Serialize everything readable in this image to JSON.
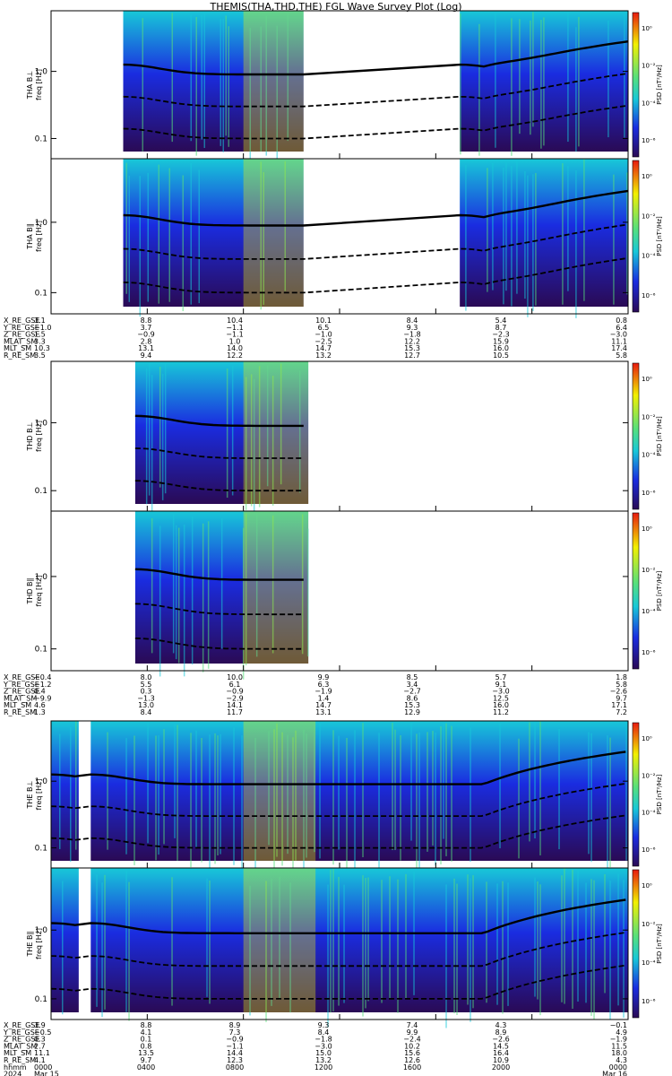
{
  "title": "THEMIS(THA,THD,THE) FGL Wave Survey Plot (Log)",
  "freq_ticks": [
    "0.1",
    "1.0"
  ],
  "cb_ticks": [
    "10⁰",
    "10⁻²",
    "10⁻⁴",
    "10⁻⁶"
  ],
  "cb_label": "PSD [nT²/Hz]",
  "colors": {
    "low": "#2a0a55",
    "blue": "#1a2ce0",
    "cyan": "#18c8d8",
    "green": "#56e07c",
    "yellow": "#f2f000",
    "red": "#e81a10"
  },
  "panels": [
    {
      "name": "tha-bl",
      "label1": "THA B⊥",
      "label2": "freq [Hz]"
    },
    {
      "name": "tha-bpar",
      "label1": "THA B∥",
      "label2": "freq [Hz]"
    },
    {
      "name": "thd-bl",
      "label1": "THD B⊥",
      "label2": "freq [Hz]"
    },
    {
      "name": "thd-bpar",
      "label1": "THD B∥",
      "label2": "freq [Hz]"
    },
    {
      "name": "the-bl",
      "label1": "THE B⊥",
      "label2": "freq [Hz]"
    },
    {
      "name": "the-bpar",
      "label1": "THE B∥",
      "label2": "freq [Hz]"
    }
  ],
  "eph_blocks": [
    {
      "rows": [
        {
          "label": "X_RE_GSE",
          "vals": [
            "3.1",
            "8.8",
            "10.4",
            "10.1",
            "8.4",
            "5.4",
            "0.8"
          ]
        },
        {
          "label": "Y_RE_GSE",
          "vals": [
            "−1.0",
            "3.7",
            "−1.1",
            "6.5",
            "9.3",
            "8.7",
            "6.4"
          ]
        },
        {
          "label": "Z_RE_GSE",
          "vals": [
            "1.5",
            "−0.9",
            "−1.1",
            "−1.0",
            "−1.8",
            "−2.3",
            "−3.0"
          ]
        },
        {
          "label": "MLAT_SM",
          "vals": [
            "3.3",
            "2.8",
            "1.0",
            "−2.5",
            "12.2",
            "15.9",
            "11.1"
          ]
        },
        {
          "label": "MLT_SM",
          "vals": [
            "10.3",
            "13.1",
            "14.0",
            "14.7",
            "15.3",
            "16.0",
            "17.4"
          ]
        },
        {
          "label": "R_RE_SM",
          "vals": [
            "3.5",
            "9.4",
            "12.2",
            "13.2",
            "12.7",
            "10.5",
            "5.8"
          ]
        }
      ]
    },
    {
      "rows": [
        {
          "label": "X_RE_GSE",
          "vals": [
            "−0.4",
            "8.0",
            "10.0",
            "9.9",
            "8.5",
            "5.7",
            "1.8"
          ]
        },
        {
          "label": "Y_RE_GSE",
          "vals": [
            "−1.2",
            "5.5",
            "6.1",
            "6.3",
            "3.4",
            "9.1",
            "5.8"
          ]
        },
        {
          "label": "Z_RE_GSE",
          "vals": [
            "0.4",
            "0.3",
            "−0.9",
            "−1.9",
            "−2.7",
            "−3.0",
            "−2.6"
          ]
        },
        {
          "label": "MLAT_SM",
          "vals": [
            "−9.9",
            "−1.3",
            "−2.9",
            "1.4",
            "8.6",
            "12.5",
            "9.7"
          ]
        },
        {
          "label": "MLT_SM",
          "vals": [
            "4.6",
            "13.0",
            "14.1",
            "14.7",
            "15.3",
            "16.0",
            "17.1"
          ]
        },
        {
          "label": "R_RE_SM",
          "vals": [
            "1.3",
            "8.4",
            "11.7",
            "13.1",
            "12.9",
            "11.2",
            "7.2"
          ]
        }
      ]
    },
    {
      "rows": [
        {
          "label": "X_RE_GSE",
          "vals": [
            "3.9",
            "8.8",
            "8.9",
            "9.3",
            "7.4",
            "4.3",
            "−0.1"
          ]
        },
        {
          "label": "Y_RE_GSE",
          "vals": [
            "−0.5",
            "4.1",
            "7.3",
            "8.4",
            "9.9",
            "8.9",
            "4.9"
          ]
        },
        {
          "label": "Z_RE_GSE",
          "vals": [
            "0.3",
            "0.1",
            "−0.9",
            "−1.8",
            "−2.4",
            "−2.6",
            "−1.9"
          ]
        },
        {
          "label": "MLAT_SM",
          "vals": [
            "2.7",
            "0.8",
            "−1.1",
            "−3.0",
            "10.2",
            "14.5",
            "11.5"
          ]
        },
        {
          "label": "MLT_SM",
          "vals": [
            "11.1",
            "13.5",
            "14.4",
            "15.0",
            "15.6",
            "16.4",
            "18.0"
          ]
        },
        {
          "label": "R_RE_SM",
          "vals": [
            "4.1",
            "9.7",
            "12.3",
            "13.2",
            "12.6",
            "10.9",
            "4.3"
          ]
        },
        {
          "label": "hhmm",
          "vals": [
            "0000",
            "0400",
            "0800",
            "1200",
            "1600",
            "2000",
            "0000"
          ]
        },
        {
          "label": "2024",
          "vals": [
            "Mar 15",
            "",
            "",
            "",
            "",
            "",
            "Mar 16"
          ]
        }
      ]
    }
  ],
  "chart_data": {
    "type": "heatmap",
    "title": "THEMIS(THA,THD,THE) FGL Wave Survey Plot (Log)",
    "x_ticks": [
      "0000",
      "0400",
      "0800",
      "1200",
      "1600",
      "2000",
      "0000"
    ],
    "date_labels": [
      "Mar 15",
      "Mar 16"
    ],
    "ylabel": "freq [Hz]",
    "yscale": "log",
    "ylim": [
      0.05,
      8
    ],
    "colorbar": {
      "label": "PSD [nT²/Hz]",
      "scale": "log",
      "range": [
        1e-07,
        10
      ]
    },
    "series": [
      {
        "name": "THA B⊥",
        "coverage_hours": [
          [
            3.0,
            10.5
          ],
          [
            17.0,
            24.0
          ]
        ]
      },
      {
        "name": "THA B∥",
        "coverage_hours": [
          [
            3.0,
            10.5
          ],
          [
            17.0,
            24.0
          ]
        ]
      },
      {
        "name": "THD B⊥",
        "coverage_hours": [
          [
            3.5,
            10.7
          ]
        ]
      },
      {
        "name": "THD B∥",
        "coverage_hours": [
          [
            3.5,
            10.7
          ]
        ]
      },
      {
        "name": "THE B⊥",
        "coverage_hours": [
          [
            0.0,
            1.15
          ],
          [
            1.65,
            24.0
          ]
        ]
      },
      {
        "name": "THE B∥",
        "coverage_hours": [
          [
            0.0,
            1.15
          ],
          [
            1.65,
            24.0
          ]
        ]
      }
    ]
  }
}
